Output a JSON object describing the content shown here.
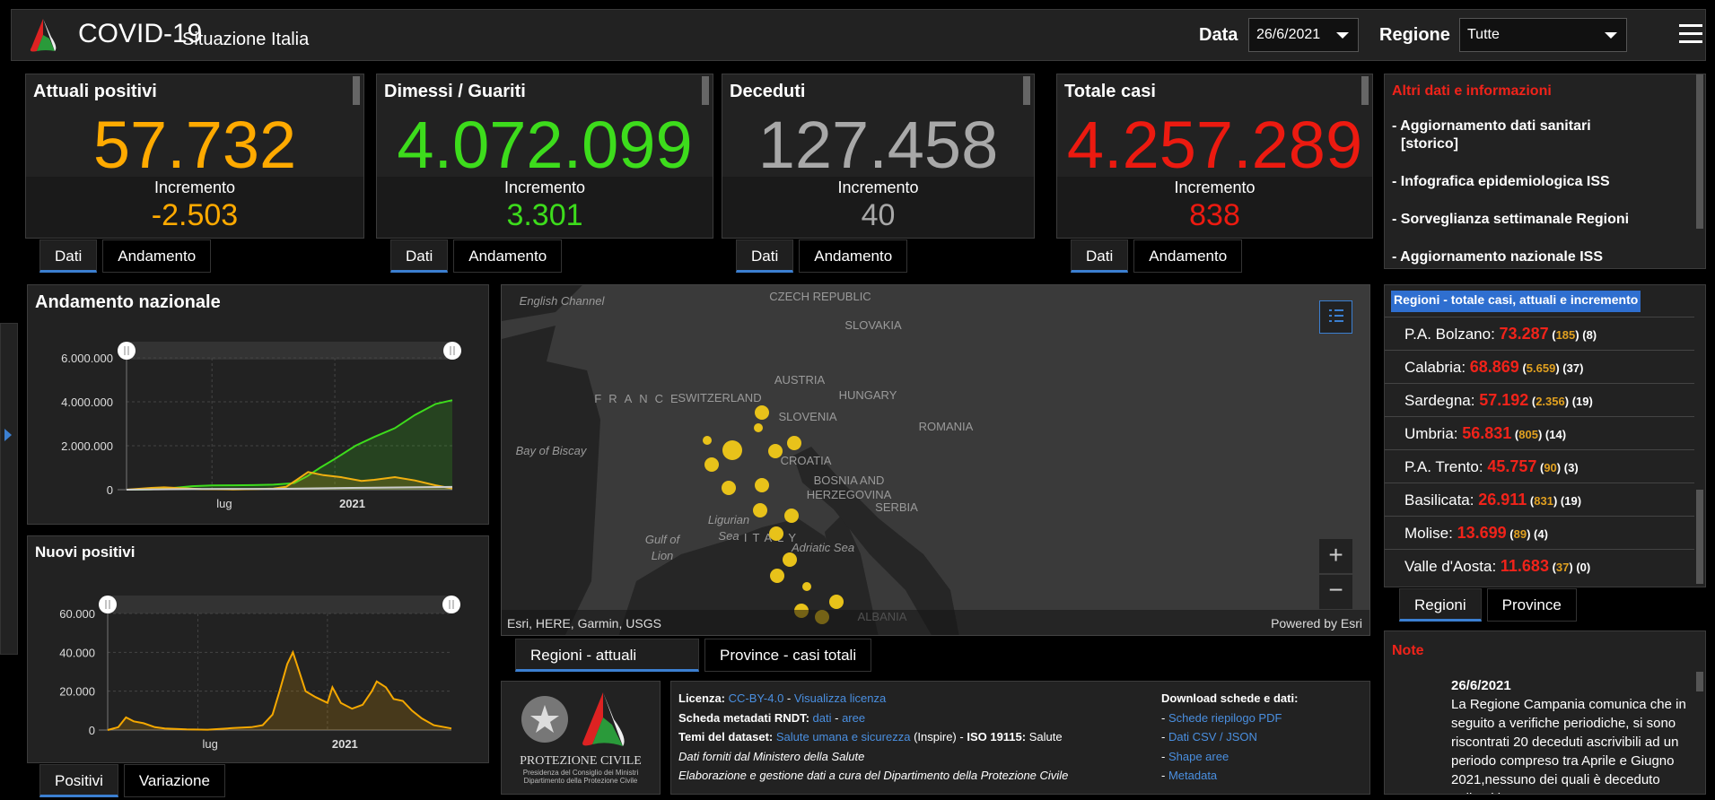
{
  "header": {
    "title": "COVID-19",
    "subtitle": "Situazione Italia",
    "data_label": "Data",
    "date_value": "26/6/2021",
    "regione_label": "Regione",
    "regione_value": "Tutte"
  },
  "cards": [
    {
      "title": "Attuali positivi",
      "value": "57.732",
      "incr_label": "Incremento",
      "incr": "-2.503",
      "color": "#ffaa00",
      "tabs": [
        "Dati",
        "Andamento"
      ]
    },
    {
      "title": "Dimessi / Guariti",
      "value": "4.072.099",
      "incr_label": "Incremento",
      "incr": "3.301",
      "color": "#3ddc1c",
      "tabs": [
        "Dati",
        "Andamento"
      ]
    },
    {
      "title": "Deceduti",
      "value": "127.458",
      "incr_label": "Incremento",
      "incr": "40",
      "color": "#a8a8a8",
      "tabs": [
        "Dati",
        "Andamento"
      ]
    },
    {
      "title": "Totale casi",
      "value": "4.257.289",
      "incr_label": "Incremento",
      "incr": "838",
      "color": "#ec1a10",
      "tabs": [
        "Dati",
        "Andamento"
      ]
    }
  ],
  "altri": {
    "title": "Altri dati e informazioni",
    "links": [
      "- Aggiornamento dati sanitari",
      "[storico]",
      "- Infografica epidemiologica ISS",
      "- Sorveglianza settimanale Regioni",
      "- Aggiornamento nazionale ISS"
    ]
  },
  "regioni": {
    "title": "Regioni - totale casi, attuali e incremento",
    "rows": [
      {
        "name": "P.A. Bolzano",
        "total": "73.287",
        "attuali": "185",
        "incr": "8"
      },
      {
        "name": "Calabria",
        "total": "68.869",
        "attuali": "5.659",
        "incr": "37"
      },
      {
        "name": "Sardegna",
        "total": "57.192",
        "attuali": "2.356",
        "incr": "19"
      },
      {
        "name": "Umbria",
        "total": "56.831",
        "attuali": "805",
        "incr": "14"
      },
      {
        "name": "P.A. Trento",
        "total": "45.757",
        "attuali": "90",
        "incr": "3"
      },
      {
        "name": "Basilicata",
        "total": "26.911",
        "attuali": "831",
        "incr": "19"
      },
      {
        "name": "Molise",
        "total": "13.699",
        "attuali": "89",
        "incr": "4"
      },
      {
        "name": "Valle d'Aosta",
        "total": "11.683",
        "attuali": "37",
        "incr": "0"
      }
    ],
    "tabs": [
      "Regioni",
      "Province"
    ]
  },
  "note": {
    "title": "Note",
    "date": "26/6/2021",
    "text": "La Regione Campania comunica che in seguito a verifiche periodiche, si sono riscontrati 20 deceduti ascrivibili ad un periodo compreso tra Aprile e Giugno 2021,nessuno dei quali è deceduto nelle ultime 48 ore."
  },
  "map": {
    "labels": [
      "English Channel",
      "CZECH REPUBLIC",
      "SLOVAKIA",
      "FRANCE",
      "SWITZERLAND",
      "AUSTRIA",
      "HUNGARY",
      "SLOVENIA",
      "ROMANIA",
      "CROATIA",
      "BOSNIA AND",
      "HERZEGOVINA",
      "SERBIA",
      "Bay of Biscay",
      "Gulf of",
      "Lion",
      "Ligurian",
      "Sea",
      "ITALY",
      "Adriatic Sea",
      "ALBANIA"
    ],
    "attribution": "Esri, HERE, Garmin, USGS",
    "powered": "Powered by Esri",
    "tabs": [
      "Regioni - attuali positivi",
      "Province - casi totali"
    ],
    "marker_color": "#e8c21a"
  },
  "footer": {
    "logo_text": "PROTEZIONE CIVILE",
    "logo_sub1": "Presidenza del Consiglio dei Ministri",
    "logo_sub2": "Dipartimento della Protezione Civile",
    "lic_label": "Licenza:",
    "lic_value": "CC-BY-4.0",
    "lic_sep": " - ",
    "lic_link": "Visualizza licenza",
    "rndt_label": "Scheda metadati RNDT:",
    "rndt_dati": "dati",
    "rndt_aree": "aree",
    "temi_label": "Temi del dataset:",
    "temi_link": "Salute umana e sicurezza",
    "temi_rest": "(Inspire) -",
    "iso_label": "ISO 19115:",
    "iso_value": "Salute",
    "line4": "Dati forniti dal Ministero della Salute",
    "line5": "Elaborazione e gestione dati a cura del Dipartimento della Protezione Civile",
    "dl_title": "Download schede e dati:",
    "dl_links": [
      "Schede riepilogo PDF",
      "Dati CSV / JSON",
      "Shape aree",
      "Metadata"
    ]
  },
  "chart_tabs": [
    "Positivi",
    "Variazione"
  ],
  "chart_data": [
    {
      "type": "area",
      "title": "Andamento nazionale",
      "x_ticks": [
        "lug",
        "2021"
      ],
      "y_ticks": [
        "0",
        "2.000.000",
        "4.000.000",
        "6.000.000"
      ],
      "ylim": [
        0,
        6000000
      ],
      "xlim": [
        "2020-02-24",
        "2021-06-26"
      ],
      "grid": true,
      "series": [
        {
          "color": "#3ddc1c",
          "points": [
            [
              "2020-02-24",
              0
            ],
            [
              "2020-04-01",
              15000
            ],
            [
              "2020-05-01",
              75000
            ],
            [
              "2020-06-01",
              160000
            ],
            [
              "2020-07-01",
              190000
            ],
            [
              "2020-08-01",
              200000
            ],
            [
              "2020-09-01",
              210000
            ],
            [
              "2020-10-01",
              230000
            ],
            [
              "2020-11-01",
              300000
            ],
            [
              "2020-11-20",
              600000
            ],
            [
              "2020-12-10",
              1000000
            ],
            [
              "2021-01-01",
              1400000
            ],
            [
              "2021-02-01",
              2000000
            ],
            [
              "2021-03-01",
              2400000
            ],
            [
              "2021-04-01",
              2800000
            ],
            [
              "2021-05-01",
              3400000
            ],
            [
              "2021-06-01",
              3900000
            ],
            [
              "2021-06-26",
              4072099
            ]
          ]
        },
        {
          "color": "#f0b010",
          "points": [
            [
              "2020-02-24",
              0
            ],
            [
              "2020-04-01",
              80000
            ],
            [
              "2020-04-20",
              108000
            ],
            [
              "2020-05-15",
              70000
            ],
            [
              "2020-06-15",
              25000
            ],
            [
              "2020-08-01",
              12000
            ],
            [
              "2020-09-01",
              26000
            ],
            [
              "2020-10-01",
              50000
            ],
            [
              "2020-10-20",
              130000
            ],
            [
              "2020-11-05",
              450000
            ],
            [
              "2020-11-22",
              805000
            ],
            [
              "2020-12-15",
              660000
            ],
            [
              "2021-01-10",
              570000
            ],
            [
              "2021-02-10",
              400000
            ],
            [
              "2021-03-01",
              450000
            ],
            [
              "2021-04-01",
              570000
            ],
            [
              "2021-05-01",
              420000
            ],
            [
              "2021-06-01",
              200000
            ],
            [
              "2021-06-26",
              57732
            ]
          ]
        },
        {
          "color": "#cccccc",
          "points": [
            [
              "2020-02-24",
              0
            ],
            [
              "2020-06-01",
              33000
            ],
            [
              "2020-10-01",
              36000
            ],
            [
              "2021-01-01",
              75000
            ],
            [
              "2021-06-26",
              127458
            ]
          ]
        }
      ]
    },
    {
      "type": "area",
      "title": "Nuovi positivi",
      "x_ticks": [
        "lug",
        "2021"
      ],
      "y_ticks": [
        "0",
        "20.000",
        "40.000",
        "60.000"
      ],
      "ylim": [
        0,
        60000
      ],
      "xlim": [
        "2020-02-24",
        "2021-06-26"
      ],
      "grid": true,
      "series": [
        {
          "color": "#f5a800",
          "points": [
            [
              "2020-02-24",
              0
            ],
            [
              "2020-03-10",
              1500
            ],
            [
              "2020-03-21",
              6500
            ],
            [
              "2020-04-01",
              4500
            ],
            [
              "2020-04-15",
              3500
            ],
            [
              "2020-05-01",
              1500
            ],
            [
              "2020-05-15",
              800
            ],
            [
              "2020-06-15",
              300
            ],
            [
              "2020-07-15",
              200
            ],
            [
              "2020-08-20",
              1000
            ],
            [
              "2020-09-15",
              1500
            ],
            [
              "2020-10-01",
              2500
            ],
            [
              "2020-10-15",
              8000
            ],
            [
              "2020-10-25",
              20000
            ],
            [
              "2020-11-05",
              34000
            ],
            [
              "2020-11-13",
              40000
            ],
            [
              "2020-11-22",
              30000
            ],
            [
              "2020-12-01",
              20000
            ],
            [
              "2020-12-15",
              17000
            ],
            [
              "2021-01-01",
              14000
            ],
            [
              "2021-01-08",
              22000
            ],
            [
              "2021-01-20",
              14000
            ],
            [
              "2021-02-05",
              11000
            ],
            [
              "2021-02-20",
              13000
            ],
            [
              "2021-03-05",
              20000
            ],
            [
              "2021-03-12",
              25000
            ],
            [
              "2021-03-25",
              22000
            ],
            [
              "2021-04-05",
              16000
            ],
            [
              "2021-04-18",
              15000
            ],
            [
              "2021-05-01",
              10000
            ],
            [
              "2021-05-15",
              6000
            ],
            [
              "2021-06-01",
              2500
            ],
            [
              "2021-06-26",
              838
            ]
          ]
        }
      ]
    }
  ]
}
